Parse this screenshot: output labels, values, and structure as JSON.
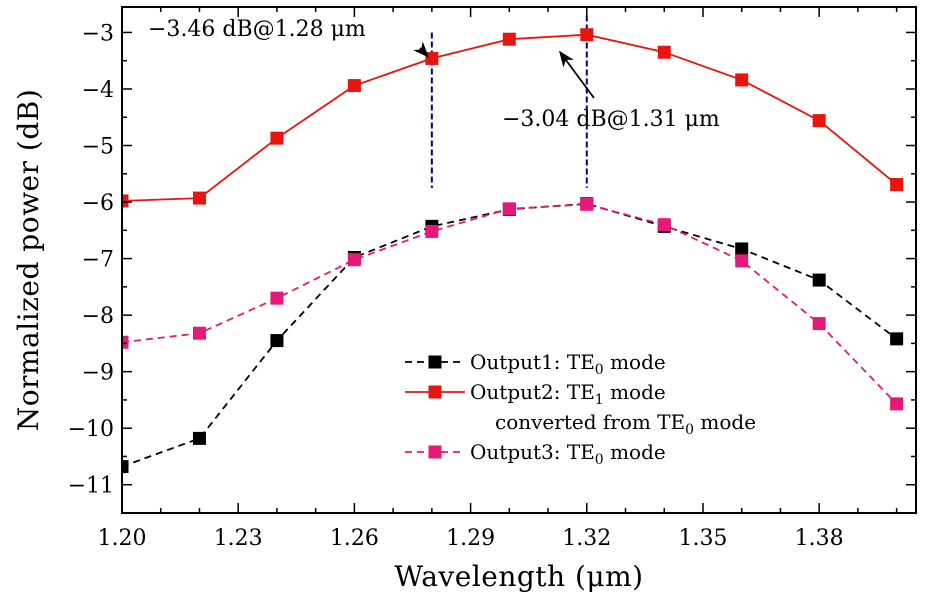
{
  "chart_data": {
    "type": "line",
    "title": "",
    "xlabel": "Wavelength (μm)",
    "ylabel": "Normalized power (dB)",
    "xlim": [
      1.2,
      1.405
    ],
    "ylim": [
      -11.5,
      -2.55
    ],
    "x_ticks": [
      1.2,
      1.23,
      1.26,
      1.29,
      1.32,
      1.35,
      1.38
    ],
    "x_tick_labels": [
      "1.20",
      "1.23",
      "1.26",
      "1.29",
      "1.32",
      "1.35",
      "1.38"
    ],
    "y_ticks": [
      -3,
      -4,
      -5,
      -6,
      -7,
      -8,
      -9,
      -10,
      -11
    ],
    "y_tick_labels": [
      "−3",
      "−4",
      "−5",
      "−6",
      "−7",
      "−8",
      "−9",
      "−10",
      "−11"
    ],
    "x": [
      1.2,
      1.22,
      1.24,
      1.26,
      1.28,
      1.3,
      1.32,
      1.34,
      1.36,
      1.38,
      1.4
    ],
    "series": [
      {
        "name": "Output2: TE1 mode converted from TE0 mode",
        "legend_main": "Output2: TE",
        "legend_sub": "1",
        "legend_tail": " mode",
        "legend_line2": "converted from TE",
        "legend_line2_sub": "0",
        "legend_line2_tail": " mode",
        "color": "#e8140f",
        "dash": "none",
        "values": [
          -5.98,
          -5.93,
          -4.87,
          -3.94,
          -3.46,
          -3.12,
          -3.04,
          -3.35,
          -3.84,
          -4.56,
          -5.69
        ]
      },
      {
        "name": "Output1: TE0 mode",
        "legend_main": "Output1: TE",
        "legend_sub": "0",
        "legend_tail": " mode",
        "color": "#000000",
        "dash": "7,5",
        "values": [
          -10.68,
          -10.18,
          -8.45,
          -6.98,
          -6.43,
          -6.13,
          -6.03,
          -6.43,
          -6.83,
          -7.38,
          -8.42
        ]
      },
      {
        "name": "Output3: TE0 mode",
        "legend_main": "Output3: TE",
        "legend_sub": "0",
        "legend_tail": " mode",
        "color": "#e6197a",
        "dash": "7,5",
        "values": [
          -8.48,
          -8.32,
          -7.7,
          -7.02,
          -6.52,
          -6.12,
          -6.04,
          -6.4,
          -7.04,
          -8.15,
          -9.57
        ]
      }
    ],
    "vertical_lines": [
      {
        "x": 1.28,
        "y_from": -3.0,
        "y_to": -5.75,
        "color": "#000080"
      },
      {
        "x": 1.32,
        "y_from": -2.7,
        "y_to": -5.75,
        "color": "#000080"
      }
    ],
    "annotations": [
      {
        "text": "−3.46 dB@1.28 μm",
        "target_x": 1.28,
        "target_y": -3.46,
        "color": "#000000"
      },
      {
        "text": "−3.04 dB@1.31 μm",
        "target_x": 1.31,
        "target_y": -3.12,
        "color": "#000000"
      }
    ],
    "legend_position": "bottom-right",
    "grid": false
  }
}
